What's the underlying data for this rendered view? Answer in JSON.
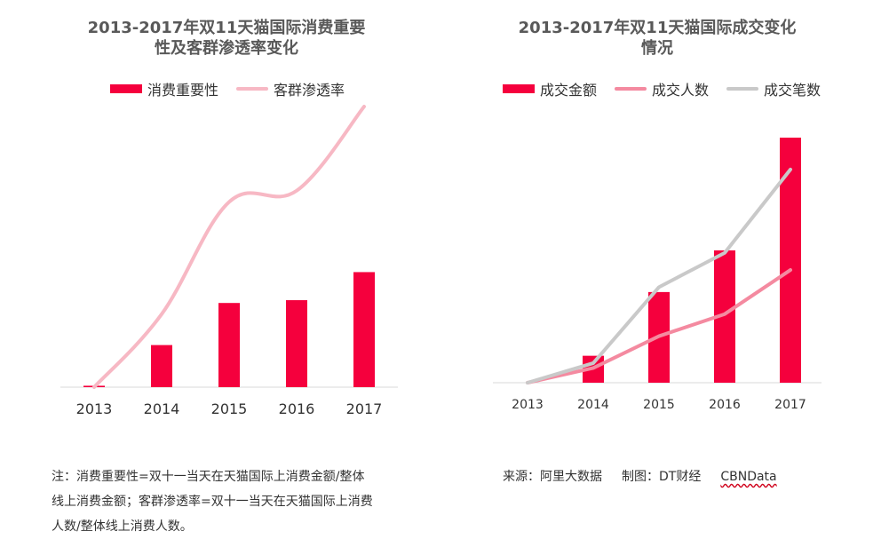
{
  "left": {
    "title_line1": "2013-2017年双11天猫国际消费重要",
    "title_line2": "性及客群渗透率变化",
    "legend": [
      {
        "label": "消费重要性",
        "type": "bar",
        "color": "#f5003d"
      },
      {
        "label": "客群渗透率",
        "type": "line",
        "color": "#f7b8c4"
      }
    ]
  },
  "right": {
    "title_line1": "2013-2017年双11天猫国际成交变化",
    "title_line2": "情况",
    "legend": [
      {
        "label": "成交金额",
        "type": "bar",
        "color": "#f5003d"
      },
      {
        "label": "成交人数",
        "type": "line",
        "color": "#f48aa0"
      },
      {
        "label": "成交笔数",
        "type": "line",
        "color": "#c9c9c9"
      }
    ]
  },
  "chart_data": [
    {
      "type": "bar",
      "title": "2013-2017年双11天猫国际消费重要性及客群渗透率变化",
      "categories": [
        "2013",
        "2014",
        "2015",
        "2016",
        "2017"
      ],
      "ylim": [
        0,
        100
      ],
      "series": [
        {
          "name": "消费重要性",
          "type": "bar",
          "color": "#f5003d",
          "values": [
            0.5,
            15,
            30,
            31,
            41
          ]
        },
        {
          "name": "客群渗透率",
          "type": "line",
          "color": "#f7b8c4",
          "values": [
            0,
            26,
            66,
            70,
            100
          ]
        }
      ],
      "grid": false
    },
    {
      "type": "bar",
      "title": "2013-2017年双11天猫国际成交变化情况",
      "categories": [
        "2013",
        "2014",
        "2015",
        "2016",
        "2017"
      ],
      "ylim": [
        0,
        100
      ],
      "series": [
        {
          "name": "成交金额",
          "type": "bar",
          "color": "#f5003d",
          "values": [
            0,
            11,
            37,
            54,
            100
          ]
        },
        {
          "name": "成交人数",
          "type": "line",
          "color": "#f48aa0",
          "values": [
            0,
            6,
            19,
            28,
            46
          ]
        },
        {
          "name": "成交笔数",
          "type": "line",
          "color": "#c9c9c9",
          "values": [
            0,
            8,
            39,
            53,
            87
          ]
        }
      ],
      "grid": false
    }
  ],
  "note_lines": [
    "注：消费重要性=双十一当天在天猫国际上消费金额/整体",
    "线上消费金额；客群渗透率=双十一当天在天猫国际上消费",
    "人数/整体线上消费人数。"
  ],
  "source": {
    "from": "来源：阿里大数据",
    "made_by": "制图：DT财经",
    "brand": "CBNData"
  }
}
